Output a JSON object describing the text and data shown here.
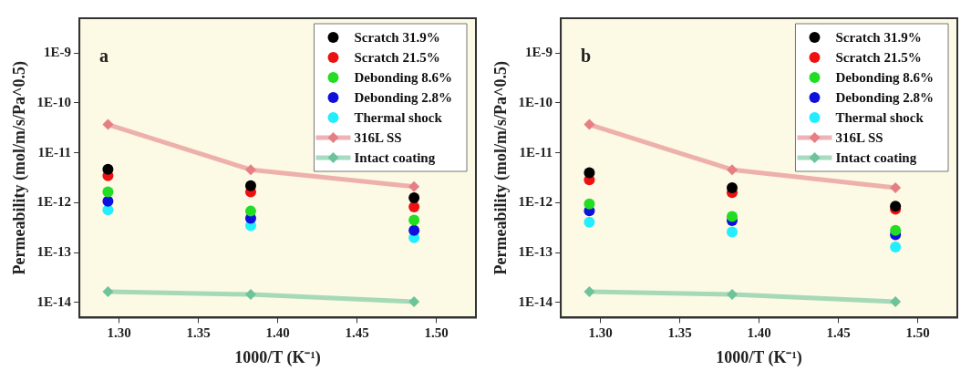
{
  "chart_data": [
    {
      "type": "scatter",
      "xlabel": "1000/T (K⁻¹)",
      "ylabel": "Permeability (mol/m/s/Pa^0.5)",
      "annotations": [
        "a"
      ],
      "x": [
        1.293,
        1.383,
        1.486
      ],
      "xlim": [
        1.275,
        1.525
      ],
      "xticks": [
        {
          "value": 1.3,
          "label": "1.30"
        },
        {
          "value": 1.35,
          "label": "1.35"
        },
        {
          "value": 1.4,
          "label": "1.40"
        },
        {
          "value": 1.45,
          "label": "1.45"
        },
        {
          "value": 1.5,
          "label": "1.50"
        }
      ],
      "log": "y",
      "ylim": [
        5e-15,
        5e-09
      ],
      "yticks": [
        {
          "value": 1e-14,
          "label": "1E-14"
        },
        {
          "value": 1e-13,
          "label": "1E-13"
        },
        {
          "value": 1e-12,
          "label": "1E-12"
        },
        {
          "value": 1e-11,
          "label": "1E-11"
        },
        {
          "value": 1e-10,
          "label": "1E-10"
        },
        {
          "value": 1e-09,
          "label": "1E-9"
        }
      ],
      "grid": false,
      "legend": "top right",
      "series": [
        {
          "name": "Scratch 31.9%",
          "marker": "circle",
          "color": "#000000",
          "values": [
            4.7e-12,
            2.2e-12,
            1.26e-12
          ]
        },
        {
          "name": "Scratch 21.5%",
          "marker": "circle",
          "color": "#ee1111",
          "values": [
            3.5e-12,
            1.66e-12,
            8.3e-13
          ]
        },
        {
          "name": "Debonding 8.6%",
          "marker": "circle",
          "color": "#22dd22",
          "values": [
            1.65e-12,
            6.8e-13,
            4.5e-13
          ]
        },
        {
          "name": "Debonding 2.8%",
          "marker": "circle",
          "color": "#1010dd",
          "values": [
            1.07e-12,
            4.9e-13,
            2.8e-13
          ]
        },
        {
          "name": "Thermal shock",
          "marker": "circle",
          "color": "#22eeff",
          "values": [
            7.2e-13,
            3.5e-13,
            2e-13
          ]
        },
        {
          "name": "316L SS",
          "type": "line",
          "marker": "diamond",
          "color": "#e57f84",
          "values": [
            3.7e-11,
            4.6e-12,
            2.1e-12
          ]
        },
        {
          "name": "Intact coating",
          "type": "line",
          "marker": "diamond",
          "color": "#6dc39a",
          "values": [
            1.65e-14,
            1.45e-14,
            1.04e-14
          ]
        }
      ]
    },
    {
      "type": "scatter",
      "xlabel": "1000/T (K⁻¹)",
      "ylabel": "Permeability (mol/m/s/Pa^0.5)",
      "annotations": [
        "b"
      ],
      "x": [
        1.293,
        1.383,
        1.486
      ],
      "xlim": [
        1.275,
        1.525
      ],
      "xticks": [
        {
          "value": 1.3,
          "label": "1.30"
        },
        {
          "value": 1.35,
          "label": "1.35"
        },
        {
          "value": 1.4,
          "label": "1.40"
        },
        {
          "value": 1.45,
          "label": "1.45"
        },
        {
          "value": 1.5,
          "label": "1.50"
        }
      ],
      "log": "y",
      "ylim": [
        5e-15,
        5e-09
      ],
      "yticks": [
        {
          "value": 1e-14,
          "label": "1E-14"
        },
        {
          "value": 1e-13,
          "label": "1E-13"
        },
        {
          "value": 1e-12,
          "label": "1E-12"
        },
        {
          "value": 1e-11,
          "label": "1E-11"
        },
        {
          "value": 1e-10,
          "label": "1E-10"
        },
        {
          "value": 1e-09,
          "label": "1E-9"
        }
      ],
      "grid": false,
      "legend": "top right",
      "series": [
        {
          "name": "Scratch 31.9%",
          "marker": "circle",
          "color": "#000000",
          "values": [
            4e-12,
            2e-12,
            8.5e-13
          ]
        },
        {
          "name": "Scratch 21.5%",
          "marker": "circle",
          "color": "#ee1111",
          "values": [
            2.9e-12,
            1.6e-12,
            7.4e-13
          ]
        },
        {
          "name": "Debonding 8.6%",
          "marker": "circle",
          "color": "#22dd22",
          "values": [
            9.5e-13,
            5.3e-13,
            2.8e-13
          ]
        },
        {
          "name": "Debonding 2.8%",
          "marker": "circle",
          "color": "#1010dd",
          "values": [
            6.9e-13,
            4.4e-13,
            2.3e-13
          ]
        },
        {
          "name": "Thermal shock",
          "marker": "circle",
          "color": "#22eeff",
          "values": [
            4.1e-13,
            2.6e-13,
            1.3e-13
          ]
        },
        {
          "name": "316L SS",
          "type": "line",
          "marker": "diamond",
          "color": "#e57f84",
          "values": [
            3.7e-11,
            4.6e-12,
            2e-12
          ]
        },
        {
          "name": "Intact coating",
          "type": "line",
          "marker": "diamond",
          "color": "#6dc39a",
          "values": [
            1.65e-14,
            1.45e-14,
            1.04e-14
          ]
        }
      ]
    }
  ]
}
